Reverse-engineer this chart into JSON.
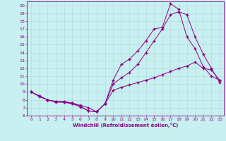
{
  "xlabel": "Windchill (Refroidissement éolien,°C)",
  "background_color": "#c8f0f0",
  "grid_color": "#b0d8d8",
  "line_color": "#880088",
  "xlim": [
    -0.5,
    23.5
  ],
  "ylim": [
    6,
    20.5
  ],
  "xticks": [
    0,
    1,
    2,
    3,
    4,
    5,
    6,
    7,
    8,
    9,
    10,
    11,
    12,
    13,
    14,
    15,
    16,
    17,
    18,
    19,
    20,
    21,
    22,
    23
  ],
  "yticks": [
    6,
    7,
    8,
    9,
    10,
    11,
    12,
    13,
    14,
    15,
    16,
    17,
    18,
    19,
    20
  ],
  "line1_x": [
    0,
    1,
    2,
    3,
    4,
    5,
    6,
    7,
    8,
    9,
    10,
    11,
    12,
    13,
    14,
    15,
    16,
    17,
    18,
    19,
    20,
    21,
    22,
    23
  ],
  "line1_y": [
    9.0,
    8.5,
    8.0,
    7.8,
    7.8,
    7.6,
    7.3,
    7.0,
    6.5,
    7.5,
    9.2,
    9.6,
    9.9,
    10.2,
    10.5,
    10.8,
    11.2,
    11.6,
    12.0,
    12.3,
    12.8,
    12.0,
    11.8,
    10.5
  ],
  "line2_x": [
    0,
    1,
    2,
    3,
    4,
    5,
    6,
    7,
    8,
    9,
    10,
    11,
    12,
    13,
    14,
    15,
    16,
    17,
    18,
    19,
    20,
    21,
    22,
    23
  ],
  "line2_y": [
    9.0,
    8.4,
    8.0,
    7.7,
    7.7,
    7.5,
    7.1,
    6.6,
    6.5,
    7.5,
    10.5,
    12.5,
    13.2,
    14.2,
    15.5,
    17.0,
    17.2,
    20.2,
    19.5,
    16.0,
    14.5,
    12.2,
    11.0,
    10.5
  ],
  "line3_x": [
    0,
    1,
    2,
    3,
    4,
    5,
    6,
    7,
    8,
    9,
    10,
    11,
    12,
    13,
    14,
    15,
    16,
    17,
    18,
    19,
    20,
    21,
    22,
    23
  ],
  "line3_y": [
    9.0,
    8.5,
    8.0,
    7.8,
    7.7,
    7.6,
    7.2,
    6.6,
    6.5,
    7.5,
    10.0,
    10.8,
    11.5,
    12.5,
    14.0,
    15.5,
    17.0,
    18.8,
    19.2,
    18.8,
    16.0,
    13.8,
    12.0,
    10.2
  ],
  "marker": "+",
  "markersize": 3.0,
  "linewidth": 0.7,
  "tick_fontsize": 4.5,
  "xlabel_fontsize": 5.0
}
